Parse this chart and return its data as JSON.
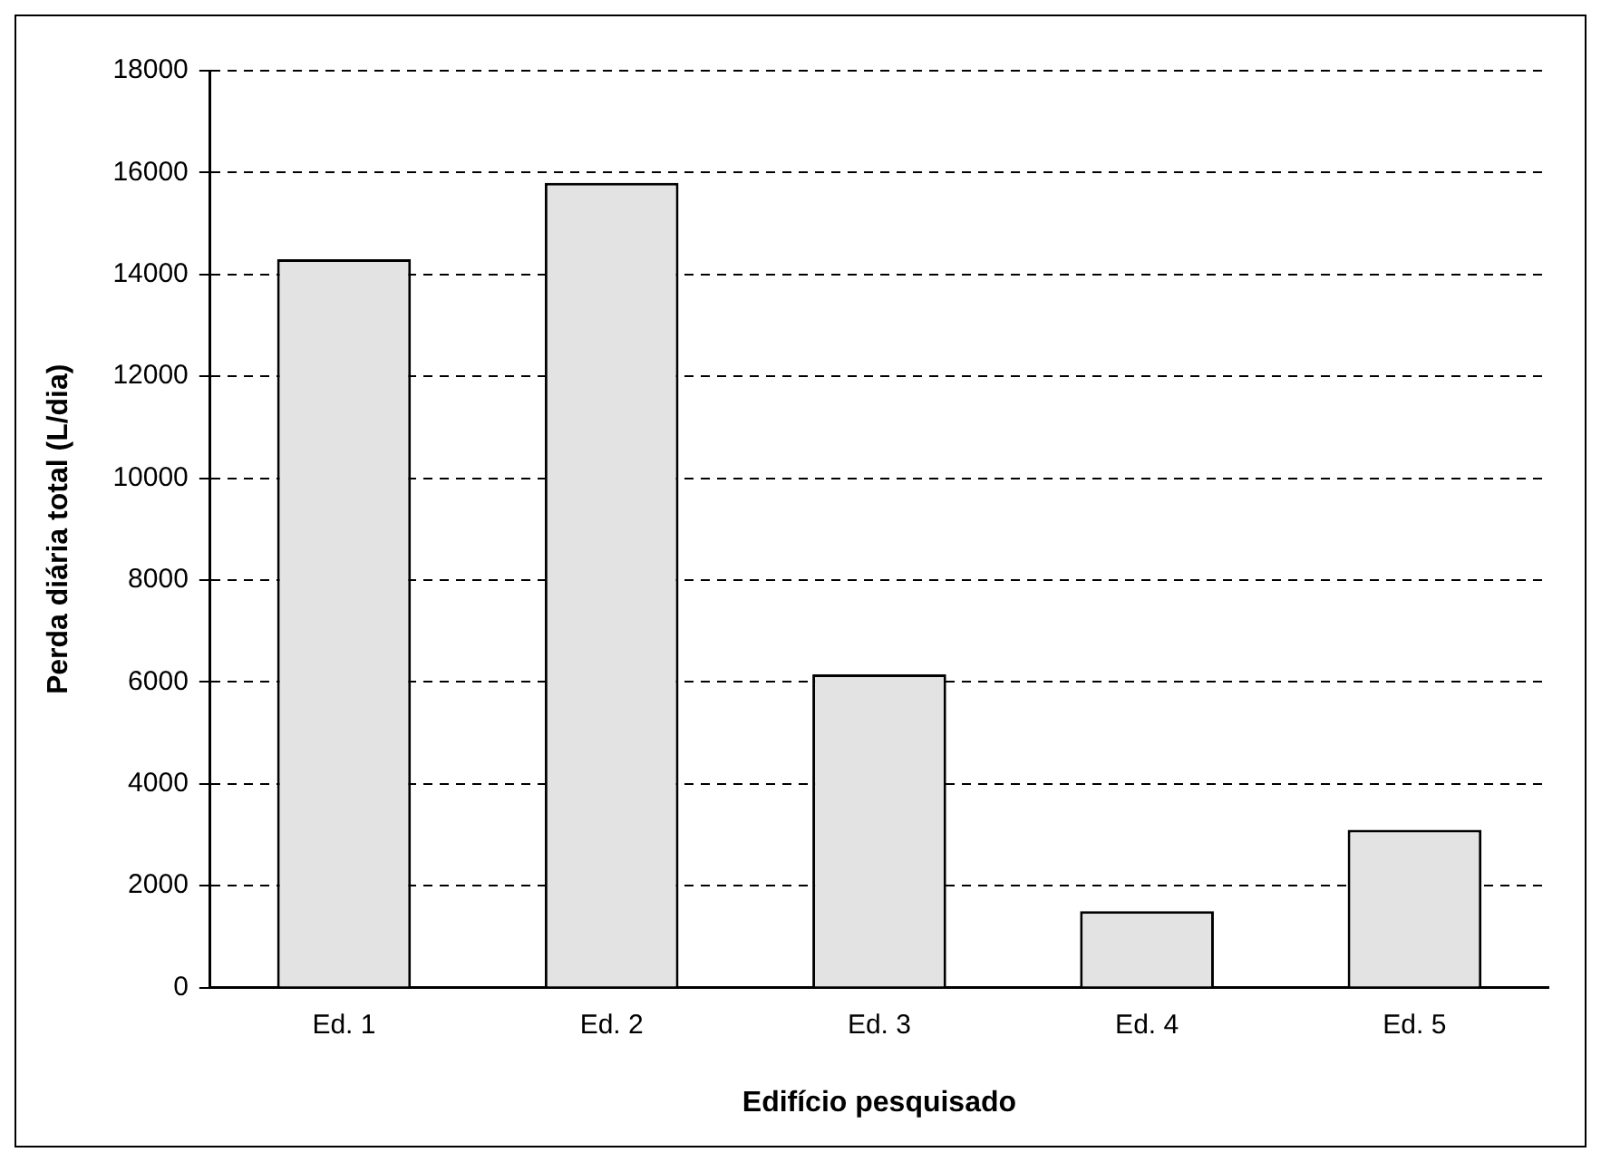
{
  "chart_data": {
    "type": "bar",
    "xlabel": "Edifício pesquisado",
    "ylabel": "Perda diária total (L/dia)",
    "categories": [
      "Ed. 1",
      "Ed. 2",
      "Ed. 3",
      "Ed. 4",
      "Ed. 5"
    ],
    "values": [
      14300,
      15800,
      6150,
      1500,
      3100
    ],
    "color": "#e3e3e3",
    "ylim": [
      0,
      18000
    ],
    "yticks": [
      0,
      2000,
      4000,
      6000,
      8000,
      10000,
      12000,
      14000,
      16000,
      18000
    ],
    "grid": "y",
    "line_style": "dashed"
  }
}
